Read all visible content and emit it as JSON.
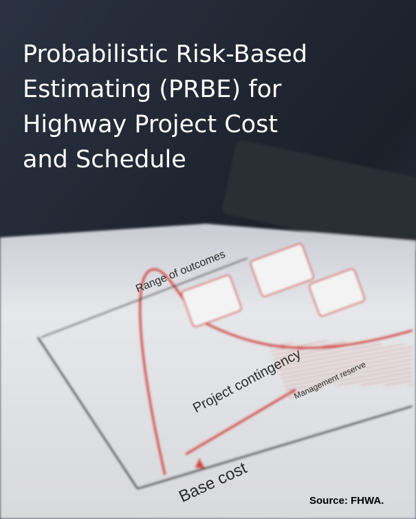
{
  "header": {
    "title_lines": [
      "Probabilistic Risk-Based",
      "Estimating (PRBE) for",
      "Highway Project Cost",
      "and Schedule"
    ]
  },
  "figure": {
    "range_label": "Range of outcomes",
    "contingency_label": "Project contingency",
    "reserve_label": "Management reserve",
    "base_label": "Base cost"
  },
  "footer": {
    "source": "Source: FHWA."
  }
}
